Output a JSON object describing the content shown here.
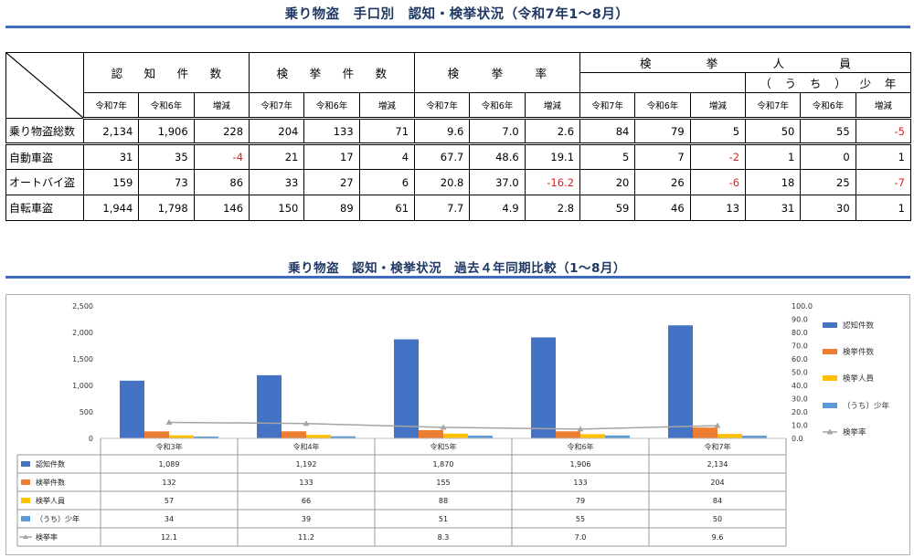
{
  "page": {
    "title_top": "乗り物盗　手口別　認知・検挙状況（令和7年1～8月）",
    "title_chart": "乗り物盗　認知・検挙状況　過去４年同期比較（1～8月）"
  },
  "table": {
    "groups": [
      "認　知　件　数",
      "検　挙　件　数",
      "検　挙　率",
      "検　挙　人　員"
    ],
    "group_chars": [
      [
        "認",
        "知",
        "件",
        "数"
      ],
      [
        "検",
        "挙",
        "件",
        "数"
      ],
      [
        "検",
        "挙",
        "率"
      ],
      [
        "検",
        "挙",
        "人",
        "員"
      ]
    ],
    "subgroup_chars": [
      "（",
      "う",
      "ち",
      "）",
      "少",
      "年"
    ],
    "sub_headers": [
      "令和7年",
      "令和6年",
      "増減",
      "令和7年",
      "令和6年",
      "増減",
      "令和7年",
      "令和6年",
      "増減",
      "令和7年",
      "令和6年",
      "増減",
      "令和7年",
      "令和6年",
      "増減"
    ],
    "rows": [
      {
        "label": "乗り物盗総数",
        "values": [
          "2,134",
          "1,906",
          "228",
          "204",
          "133",
          "71",
          "9.6",
          "7.0",
          "2.6",
          "84",
          "79",
          "5",
          "50",
          "55",
          "-5"
        ]
      },
      {
        "label": "自動車盗",
        "values": [
          "31",
          "35",
          "-4",
          "21",
          "17",
          "4",
          "67.7",
          "48.6",
          "19.1",
          "5",
          "7",
          "-2",
          "1",
          "0",
          "1"
        ]
      },
      {
        "label": "オートバイ盗",
        "values": [
          "159",
          "73",
          "86",
          "33",
          "27",
          "6",
          "20.8",
          "37.0",
          "-16.2",
          "20",
          "26",
          "-6",
          "18",
          "25",
          "-7"
        ]
      },
      {
        "label": "自転車盗",
        "values": [
          "1,944",
          "1,798",
          "146",
          "150",
          "89",
          "61",
          "7.7",
          "4.9",
          "2.8",
          "59",
          "46",
          "13",
          "31",
          "30",
          "1"
        ]
      }
    ],
    "negative_color": "#e02020"
  },
  "chart_data": {
    "type": "bar",
    "categories": [
      "令和3年",
      "令和4年",
      "令和5年",
      "令和6年",
      "令和7年"
    ],
    "series": [
      {
        "name": "認知件数",
        "type": "bar",
        "axis": "left",
        "color": "#4472c4",
        "values": [
          1089,
          1192,
          1870,
          1906,
          2134
        ],
        "labels": [
          "1,089",
          "1,192",
          "1,870",
          "1,906",
          "2,134"
        ]
      },
      {
        "name": "検挙件数",
        "type": "bar",
        "axis": "left",
        "color": "#ed7d31",
        "values": [
          132,
          133,
          155,
          133,
          204
        ],
        "labels": [
          "132",
          "133",
          "155",
          "133",
          "204"
        ]
      },
      {
        "name": "検挙人員",
        "type": "bar",
        "axis": "left",
        "color": "#ffc000",
        "values": [
          57,
          66,
          88,
          79,
          84
        ],
        "labels": [
          "57",
          "66",
          "88",
          "79",
          "84"
        ]
      },
      {
        "name": "（うち）少年",
        "type": "bar",
        "axis": "left",
        "color": "#5b9bd5",
        "values": [
          34,
          39,
          51,
          55,
          50
        ],
        "labels": [
          "34",
          "39",
          "51",
          "55",
          "50"
        ]
      },
      {
        "name": "検挙率",
        "type": "line",
        "axis": "right",
        "color": "#a5a5a5",
        "values": [
          12.1,
          11.2,
          8.3,
          7.0,
          9.6
        ],
        "labels": [
          "12.1",
          "11.2",
          "8.3",
          "7.0",
          "9.6"
        ]
      }
    ],
    "y_left": {
      "min": 0,
      "max": 2500,
      "step": 500,
      "tick_labels": [
        "0",
        "500",
        "1,000",
        "1,500",
        "2,000",
        "2,500"
      ]
    },
    "y_right": {
      "min": 0,
      "max": 100,
      "step": 10,
      "tick_labels": [
        "0.0",
        "10.0",
        "20.0",
        "30.0",
        "40.0",
        "50.0",
        "60.0",
        "70.0",
        "80.0",
        "90.0",
        "100.0"
      ]
    },
    "legend_position": "right",
    "data_table": true,
    "grid": false
  }
}
